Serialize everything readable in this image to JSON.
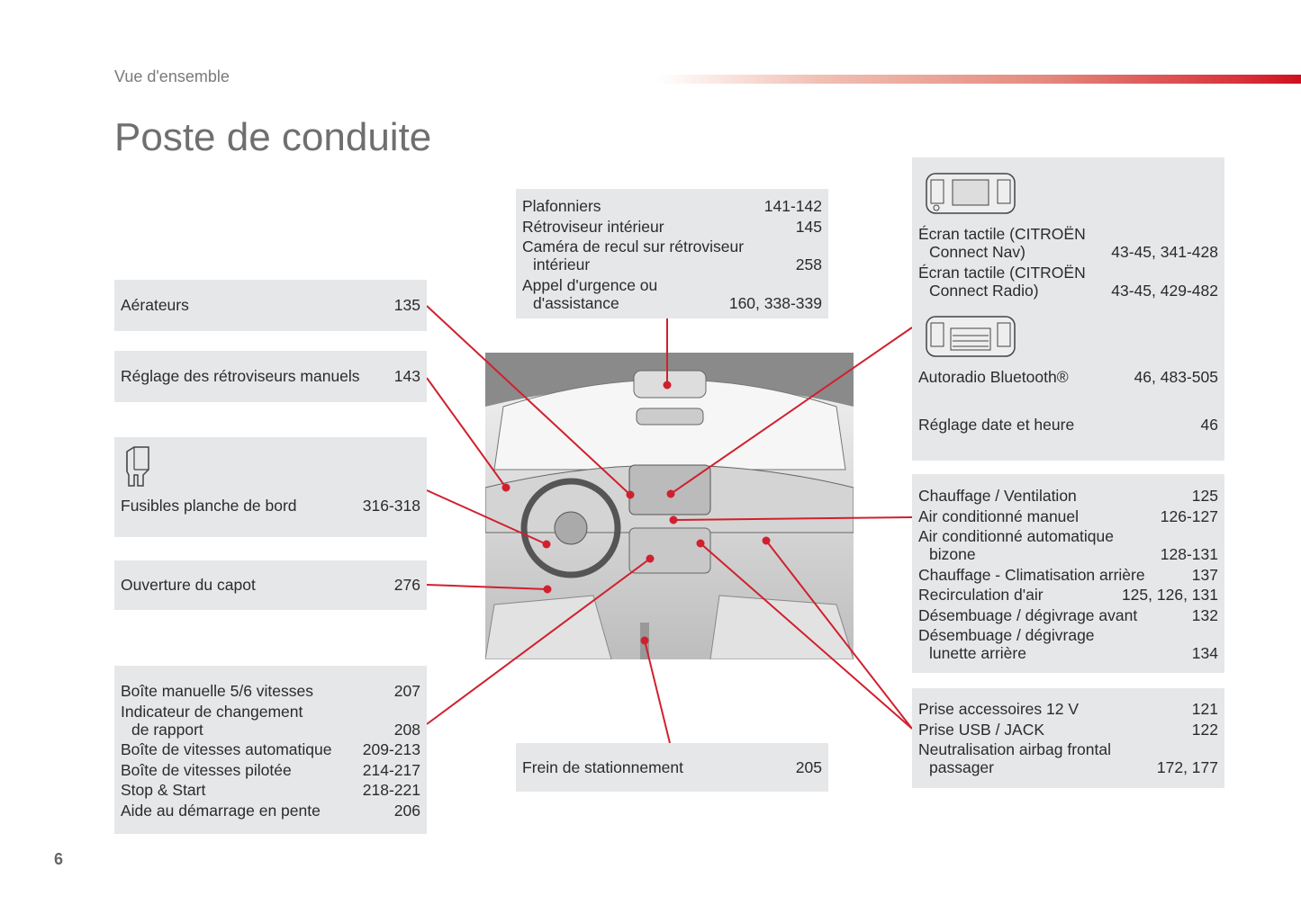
{
  "header": {
    "section": "Vue d'ensemble",
    "title": "Poste de conduite",
    "page_number": "6"
  },
  "colors": {
    "accent": "#d0202e",
    "box_bg": "#e6e7e9"
  },
  "boxes": {
    "aerateurs": {
      "items": [
        {
          "label": "Aérateurs",
          "page": "135"
        }
      ]
    },
    "retroviseurs": {
      "items": [
        {
          "label": "Réglage des rétroviseurs manuels",
          "page": "143"
        }
      ]
    },
    "fusibles": {
      "icon": "fuse-icon",
      "items": [
        {
          "label": "Fusibles planche de bord",
          "page": "316-318"
        }
      ]
    },
    "capot": {
      "items": [
        {
          "label": "Ouverture du capot",
          "page": "276"
        }
      ]
    },
    "boite": {
      "items": [
        {
          "label": "Boîte manuelle 5/6 vitesses",
          "page": "207"
        },
        {
          "label": "Indicateur de changement",
          "cont": "de rapport",
          "page": "208"
        },
        {
          "label": "Boîte de vitesses automatique",
          "page": "209-213"
        },
        {
          "label": "Boîte de vitesses pilotée",
          "page": "214-217"
        },
        {
          "label": "Stop & Start",
          "page": "218-221"
        },
        {
          "label": "Aide au démarrage en pente",
          "page": "206"
        }
      ]
    },
    "plafonniers": {
      "items": [
        {
          "label": "Plafonniers",
          "page": "141-142"
        },
        {
          "label": "Rétroviseur intérieur",
          "page": "145"
        },
        {
          "label": "Caméra de recul sur rétroviseur",
          "cont": "intérieur",
          "page": "258"
        },
        {
          "label": "Appel d'urgence ou",
          "cont": "d'assistance",
          "page": "160, 338-339"
        }
      ]
    },
    "frein": {
      "items": [
        {
          "label": "Frein de stationnement",
          "page": "205"
        }
      ]
    },
    "ecran": {
      "icons": [
        "touchscreen-icon",
        "radio-icon"
      ],
      "items": [
        {
          "label": "Écran tactile (CITROËN",
          "cont": "Connect Nav)",
          "page": "43-45, 341-428"
        },
        {
          "label": "Écran tactile (CITROËN",
          "cont": "Connect Radio)",
          "page": "43-45, 429-482"
        },
        {
          "label": "Autoradio Bluetooth®",
          "page": "46, 483-505"
        },
        {
          "label": "Réglage date et heure",
          "page": "46"
        }
      ]
    },
    "chauffage": {
      "items": [
        {
          "label": "Chauffage / Ventilation",
          "page": "125"
        },
        {
          "label": "Air conditionné manuel",
          "page": "126-127"
        },
        {
          "label": "Air conditionné automatique",
          "cont": "bizone",
          "page": "128-131"
        },
        {
          "label": "Chauffage - Climatisation arrière",
          "page": "137"
        },
        {
          "label": "Recirculation d'air",
          "page": "125, 126, 131"
        },
        {
          "label": "Désembuage / dégivrage avant",
          "page": "132"
        },
        {
          "label": "Désembuage / dégivrage",
          "cont": "lunette arrière",
          "page": "134"
        }
      ]
    },
    "prises": {
      "items": [
        {
          "label": "Prise accessoires 12 V",
          "page": "121"
        },
        {
          "label": "Prise USB / JACK",
          "page": "122"
        },
        {
          "label": "Neutralisation airbag frontal",
          "cont": "passager",
          "page": "172, 177"
        }
      ]
    }
  }
}
